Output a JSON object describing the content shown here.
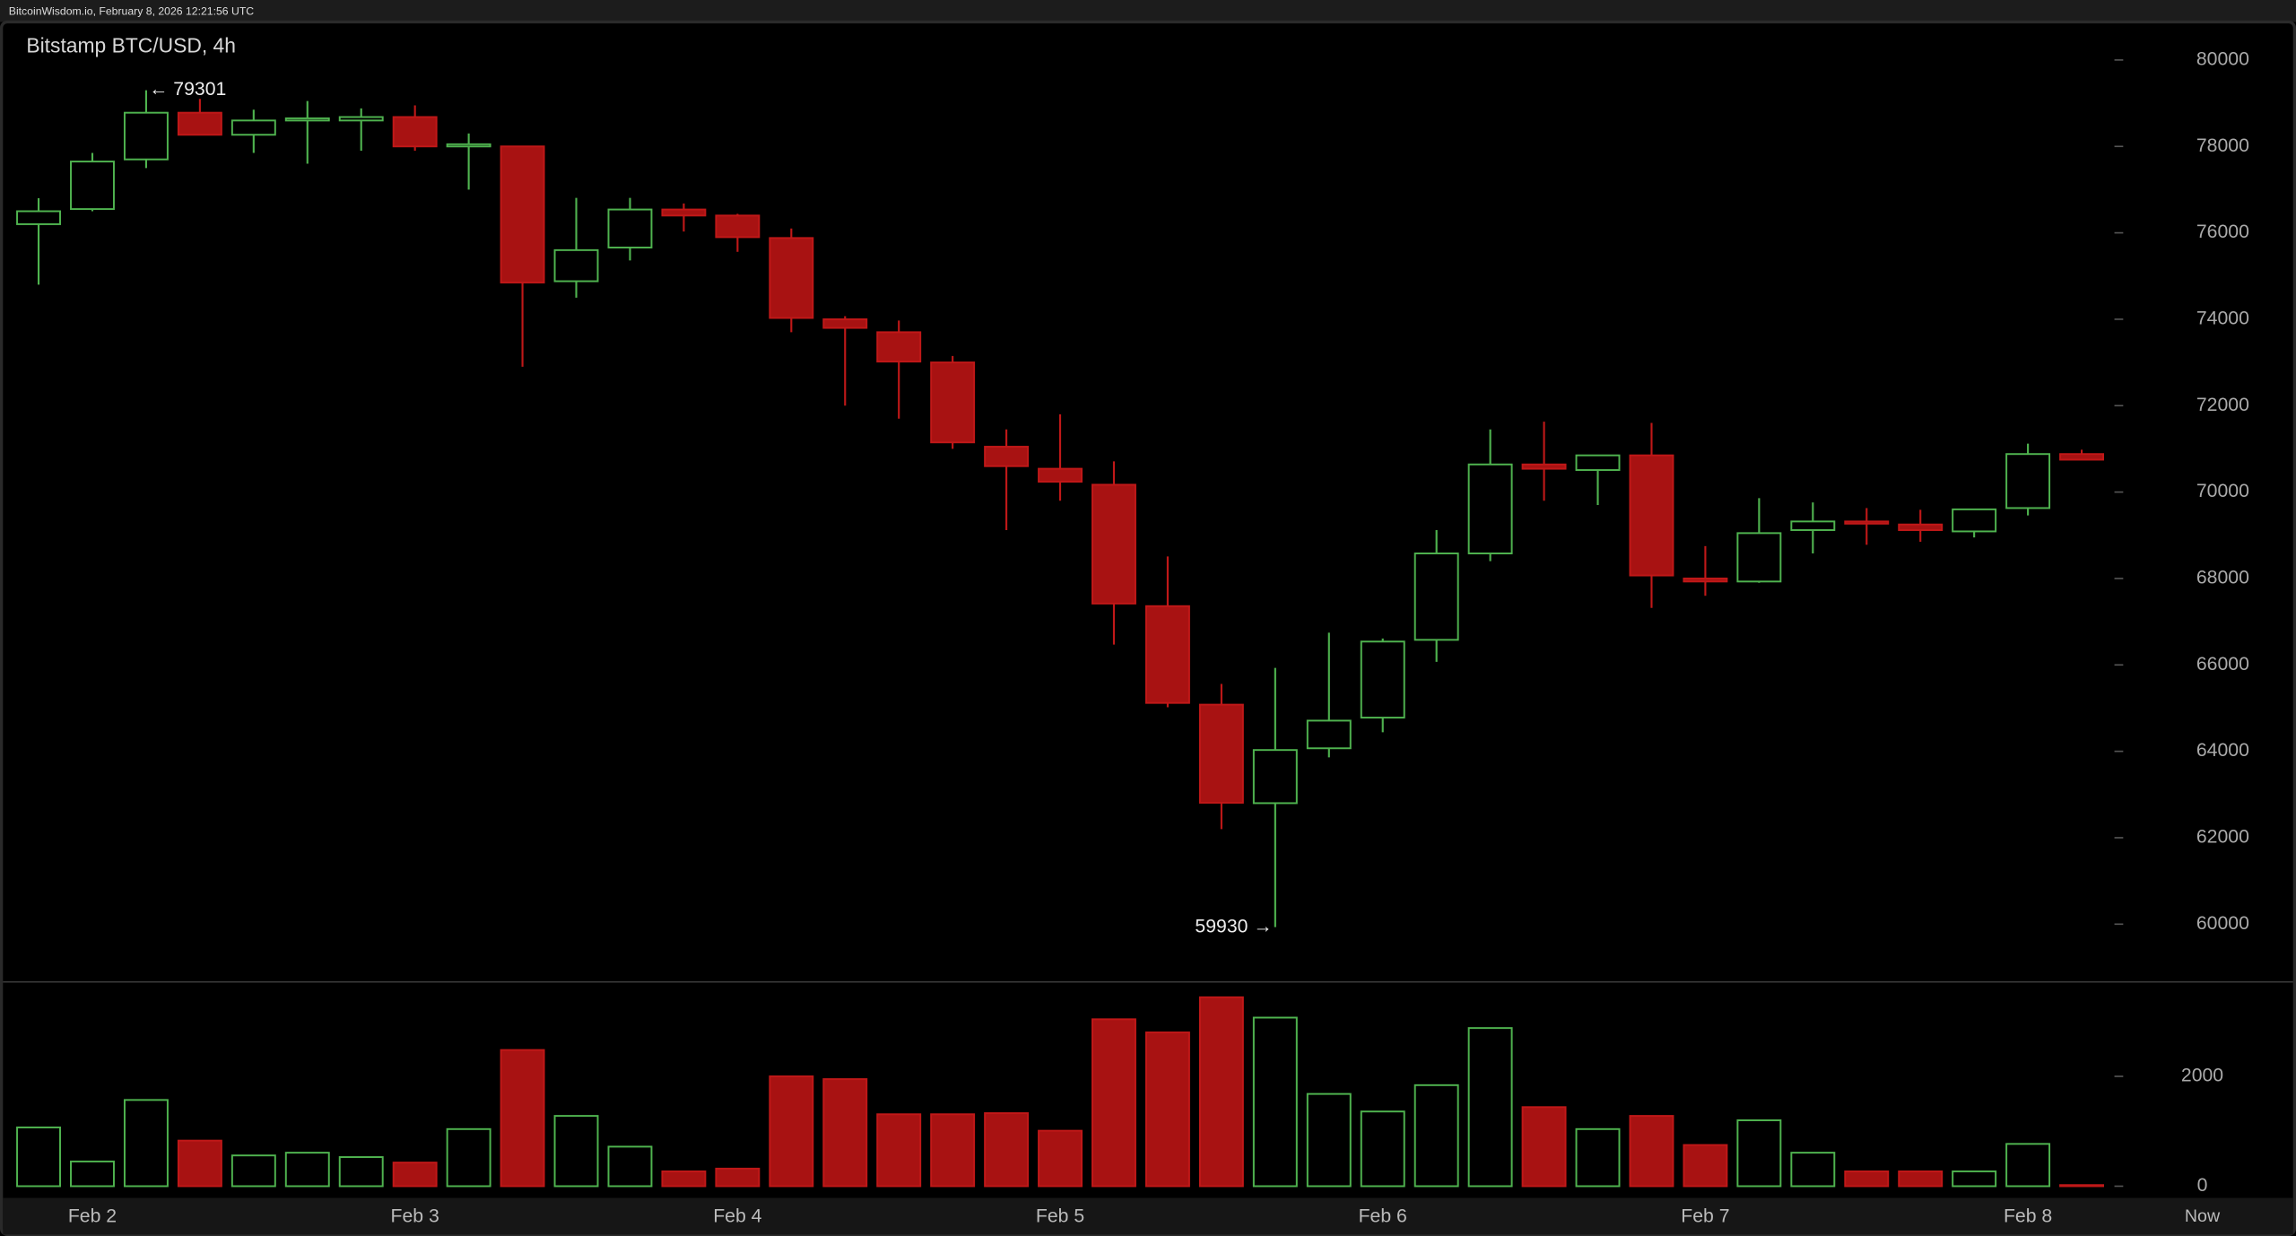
{
  "header": "BitcoinWisdom.io, February 8, 2026 12:21:56 UTC",
  "chart_data": {
    "type": "candlestick",
    "title": "Bitstamp BTC/USD, 4h",
    "categories": [
      null,
      "Feb 2",
      null,
      null,
      null,
      null,
      null,
      "Feb 3",
      null,
      null,
      null,
      null,
      null,
      "Feb 4",
      null,
      null,
      null,
      null,
      null,
      "Feb 5",
      null,
      null,
      null,
      null,
      null,
      "Feb 6",
      null,
      null,
      null,
      null,
      null,
      "Feb 7",
      null,
      null,
      null,
      null,
      null,
      "Feb 8",
      null
    ],
    "now_label": "Now",
    "open": [
      76200,
      76550,
      77700,
      78780,
      78270,
      78600,
      78600,
      78680,
      78000,
      78000,
      74880,
      75660,
      76540,
      76400,
      75880,
      74000,
      73700,
      73000,
      71050,
      70540,
      70170,
      67360,
      65080,
      62800,
      64070,
      64780,
      66580,
      68580,
      70640,
      70510,
      70850,
      68000,
      67930,
      69120,
      69320,
      69250,
      69090,
      69630,
      70880
    ],
    "high": [
      76800,
      77850,
      79301,
      79100,
      78850,
      79050,
      78880,
      78950,
      78300,
      78000,
      76810,
      76810,
      76680,
      76440,
      76100,
      74070,
      73970,
      73150,
      71450,
      71800,
      70710,
      68510,
      65560,
      65930,
      66745,
      66610,
      69120,
      71450,
      71630,
      70850,
      71600,
      68750,
      69860,
      69760,
      69630,
      69590,
      69600,
      71120,
      70980
    ],
    "low": [
      74800,
      76500,
      77500,
      78270,
      77850,
      77600,
      77900,
      77900,
      77000,
      72900,
      74500,
      75360,
      76030,
      75560,
      73700,
      72000,
      71700,
      71000,
      69120,
      69800,
      66470,
      65020,
      62200,
      59930,
      63860,
      64440,
      66070,
      68400,
      69800,
      69700,
      67320,
      67600,
      67900,
      68580,
      68780,
      68850,
      68950,
      69460,
      70750
    ],
    "close": [
      76500,
      77650,
      78780,
      78270,
      78600,
      78650,
      78680,
      78000,
      78050,
      74850,
      75600,
      76540,
      76400,
      75900,
      74030,
      73800,
      73020,
      71150,
      70600,
      70240,
      67420,
      65120,
      62810,
      64030,
      64710,
      66540,
      68580,
      70640,
      70540,
      70850,
      68070,
      67930,
      69050,
      69320,
      69280,
      69120,
      69600,
      70880,
      70750
    ],
    "volume": [
      1070,
      450,
      1570,
      830,
      560,
      610,
      530,
      430,
      1040,
      2480,
      1280,
      720,
      270,
      320,
      2000,
      1950,
      1310,
      1310,
      1330,
      1010,
      3040,
      2800,
      3440,
      3070,
      1680,
      1360,
      1840,
      2880,
      1440,
      1040,
      1280,
      750,
      1200,
      610,
      270,
      270,
      270,
      770,
      20
    ],
    "up_color": "#4fb34f",
    "down_color": "#a81212",
    "max_label": "← 79301",
    "min_label": "59930 →",
    "ylim": [
      58680,
      80880
    ],
    "yticks": [
      60000,
      62000,
      64000,
      66000,
      68000,
      70000,
      72000,
      74000,
      76000,
      78000,
      80000
    ],
    "volume_ylim": [
      0,
      3680
    ],
    "volume_yticks": [
      0,
      2000
    ]
  }
}
